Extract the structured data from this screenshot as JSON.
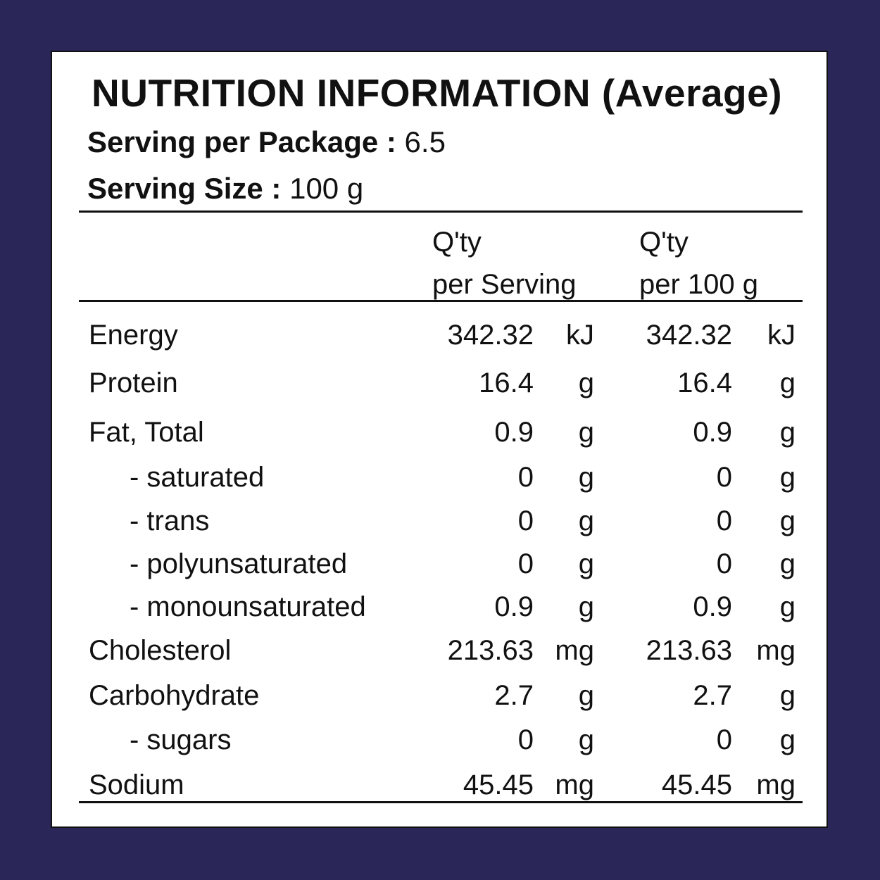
{
  "label": {
    "title": "NUTRITION INFORMATION (Average)",
    "servings_per_package": {
      "label": "Serving per Package :",
      "value": "6.5"
    },
    "serving_size": {
      "label": "Serving Size :",
      "value": "100 g"
    },
    "columns": {
      "per_serving": [
        "Q'ty",
        "per Serving"
      ],
      "per_100g": [
        "Q'ty",
        "per 100 g"
      ]
    },
    "rows": [
      {
        "name": "Energy",
        "per_serving": "342.32",
        "unit_serving": "kJ",
        "per_100g": "342.32",
        "unit_100g": "kJ"
      },
      {
        "name": "Protein",
        "per_serving": "16.4",
        "unit_serving": "g",
        "per_100g": "16.4",
        "unit_100g": "g"
      },
      {
        "name": "Fat, Total",
        "per_serving": "0.9",
        "unit_serving": "g",
        "per_100g": "0.9",
        "unit_100g": "g"
      },
      {
        "name": "- saturated",
        "per_serving": "0",
        "unit_serving": "g",
        "per_100g": "0",
        "unit_100g": "g"
      },
      {
        "name": "- trans",
        "per_serving": "0",
        "unit_serving": "g",
        "per_100g": "0",
        "unit_100g": "g"
      },
      {
        "name": "- polyunsaturated",
        "per_serving": "0",
        "unit_serving": "g",
        "per_100g": "0",
        "unit_100g": "g"
      },
      {
        "name": "- monounsaturated",
        "per_serving": "0.9",
        "unit_serving": "g",
        "per_100g": "0.9",
        "unit_100g": "g"
      },
      {
        "name": "Cholesterol",
        "per_serving": "213.63",
        "unit_serving": "mg",
        "per_100g": "213.63",
        "unit_100g": "mg"
      },
      {
        "name": "Carbohydrate",
        "per_serving": "2.7",
        "unit_serving": "g",
        "per_100g": "2.7",
        "unit_100g": "g"
      },
      {
        "name": "- sugars",
        "per_serving": "0",
        "unit_serving": "g",
        "per_100g": "0",
        "unit_100g": "g"
      },
      {
        "name": "Sodium",
        "per_serving": "45.45",
        "unit_serving": "mg",
        "per_100g": "45.45",
        "unit_100g": "mg"
      }
    ]
  },
  "colors": {
    "background": "#2a2657",
    "panel": "#ffffff",
    "text": "#111111"
  }
}
